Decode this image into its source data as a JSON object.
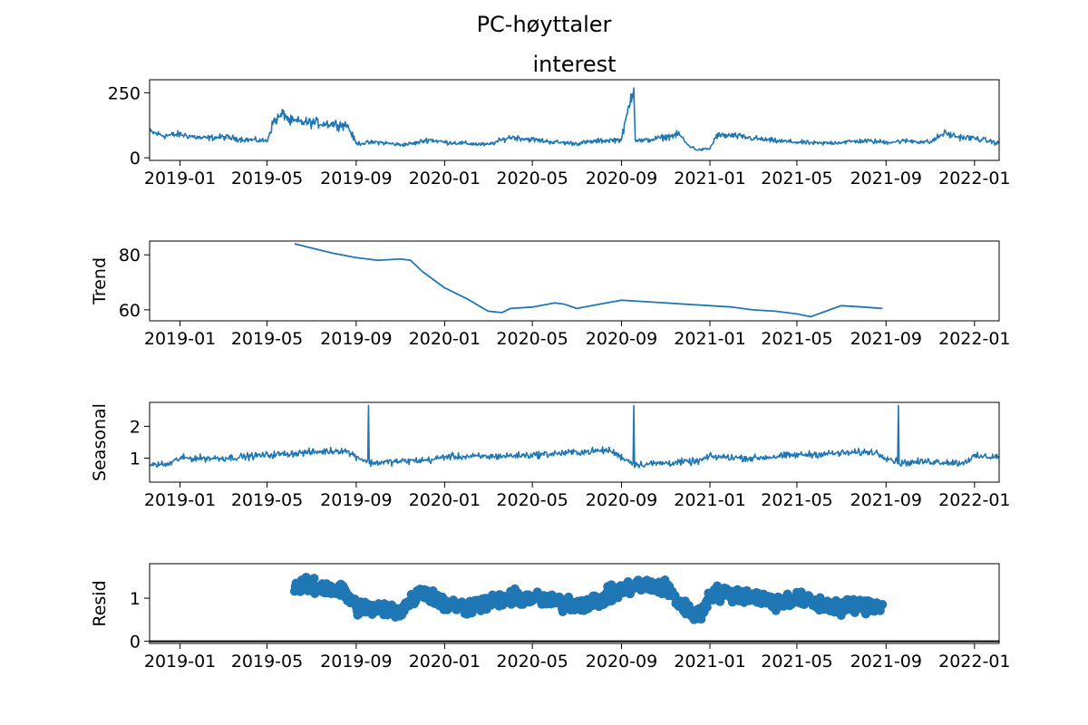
{
  "figure": {
    "suptitle": "PC-høyttaler"
  },
  "colors": {
    "series": "#1f77b4",
    "axis": "#000000",
    "baseline": "#000000"
  },
  "x_axis": {
    "type": "date",
    "range": [
      "2018-11-20",
      "2022-02-04"
    ],
    "ticks": [
      "2019-01-01",
      "2019-05-01",
      "2019-09-01",
      "2020-01-01",
      "2020-05-01",
      "2020-09-01",
      "2021-01-01",
      "2021-05-01",
      "2021-09-01",
      "2022-01-01"
    ],
    "tick_labels": [
      "2019-01",
      "2019-05",
      "2019-09",
      "2020-01",
      "2020-05",
      "2020-09",
      "2021-01",
      "2021-05",
      "2021-09",
      "2022-01"
    ]
  },
  "chart_data": [
    {
      "type": "line",
      "title": "interest",
      "ylabel": "",
      "ylim": [
        -10,
        300
      ],
      "yticks": [
        0,
        250
      ],
      "grid": false,
      "series": [
        {
          "points": [
            [
              "2018-11-20",
              100
            ],
            [
              "2018-12-10",
              85
            ],
            [
              "2019-01-01",
              90
            ],
            [
              "2019-02-01",
              75
            ],
            [
              "2019-03-01",
              80
            ],
            [
              "2019-04-01",
              70
            ],
            [
              "2019-05-01",
              65
            ],
            [
              "2019-05-10",
              140
            ],
            [
              "2019-05-25",
              170
            ],
            [
              "2019-06-01",
              140
            ],
            [
              "2019-07-01",
              135
            ],
            [
              "2019-08-01",
              130
            ],
            [
              "2019-08-20",
              125
            ],
            [
              "2019-09-01",
              55
            ],
            [
              "2019-10-01",
              60
            ],
            [
              "2019-11-01",
              50
            ],
            [
              "2019-11-20",
              55
            ],
            [
              "2019-12-10",
              70
            ],
            [
              "2020-01-01",
              60
            ],
            [
              "2020-02-01",
              55
            ],
            [
              "2020-03-01",
              50
            ],
            [
              "2020-04-01",
              80
            ],
            [
              "2020-05-01",
              70
            ],
            [
              "2020-06-01",
              60
            ],
            [
              "2020-07-01",
              55
            ],
            [
              "2020-08-01",
              65
            ],
            [
              "2020-09-01",
              70
            ],
            [
              "2020-09-18",
              280
            ],
            [
              "2020-09-20",
              70
            ],
            [
              "2020-10-01",
              65
            ],
            [
              "2020-11-01",
              80
            ],
            [
              "2020-11-20",
              90
            ],
            [
              "2020-12-01",
              50
            ],
            [
              "2020-12-15",
              30
            ],
            [
              "2021-01-01",
              35
            ],
            [
              "2021-01-10",
              85
            ],
            [
              "2021-02-01",
              85
            ],
            [
              "2021-03-01",
              75
            ],
            [
              "2021-04-01",
              65
            ],
            [
              "2021-05-01",
              60
            ],
            [
              "2021-06-01",
              55
            ],
            [
              "2021-07-01",
              60
            ],
            [
              "2021-08-01",
              65
            ],
            [
              "2021-09-01",
              60
            ],
            [
              "2021-10-01",
              65
            ],
            [
              "2021-11-01",
              60
            ],
            [
              "2021-11-20",
              95
            ],
            [
              "2021-12-10",
              80
            ],
            [
              "2022-01-01",
              75
            ],
            [
              "2022-01-20",
              65
            ],
            [
              "2022-02-04",
              55
            ]
          ]
        }
      ]
    },
    {
      "type": "line",
      "title": "",
      "ylabel": "Trend",
      "ylim": [
        56,
        85
      ],
      "yticks": [
        60,
        80
      ],
      "grid": false,
      "series": [
        {
          "points": [
            [
              "2019-06-08",
              84
            ],
            [
              "2019-07-01",
              82.5
            ],
            [
              "2019-08-01",
              80.5
            ],
            [
              "2019-09-01",
              79
            ],
            [
              "2019-10-01",
              78
            ],
            [
              "2019-11-01",
              78.5
            ],
            [
              "2019-11-15",
              78
            ],
            [
              "2019-12-01",
              74
            ],
            [
              "2020-01-01",
              68
            ],
            [
              "2020-02-01",
              64
            ],
            [
              "2020-03-01",
              59.5
            ],
            [
              "2020-03-20",
              59
            ],
            [
              "2020-04-01",
              60.5
            ],
            [
              "2020-05-01",
              61
            ],
            [
              "2020-06-01",
              62.5
            ],
            [
              "2020-06-15",
              62
            ],
            [
              "2020-07-01",
              60.5
            ],
            [
              "2020-08-01",
              62
            ],
            [
              "2020-09-01",
              63.5
            ],
            [
              "2020-10-01",
              63
            ],
            [
              "2020-11-01",
              62.5
            ],
            [
              "2020-12-01",
              62
            ],
            [
              "2021-01-01",
              61.5
            ],
            [
              "2021-02-01",
              61
            ],
            [
              "2021-03-01",
              60
            ],
            [
              "2021-04-01",
              59.5
            ],
            [
              "2021-05-01",
              58.5
            ],
            [
              "2021-05-20",
              57.5
            ],
            [
              "2021-06-10",
              59.5
            ],
            [
              "2021-07-01",
              61.5
            ],
            [
              "2021-08-01",
              61
            ],
            [
              "2021-08-27",
              60.5
            ]
          ]
        }
      ]
    },
    {
      "type": "line",
      "title": "",
      "ylabel": "Seasonal",
      "ylim": [
        0.25,
        2.75
      ],
      "yticks": [
        1,
        2
      ],
      "grid": false,
      "series": [
        {
          "base_segments": [
            [
              "2018-11-20",
              0.8
            ],
            [
              "2018-12-15",
              0.8
            ],
            [
              "2019-01-01",
              1.0
            ],
            [
              "2019-03-01",
              1.0
            ],
            [
              "2019-05-01",
              1.1
            ],
            [
              "2019-08-15",
              1.25
            ],
            [
              "2019-09-20",
              0.85
            ],
            [
              "2019-11-01",
              0.9
            ],
            [
              "2019-12-15",
              0.95
            ],
            [
              "2020-01-01",
              1.05
            ],
            [
              "2020-03-01",
              1.05
            ],
            [
              "2020-05-01",
              1.1
            ],
            [
              "2020-08-15",
              1.25
            ],
            [
              "2020-09-20",
              0.8
            ],
            [
              "2020-11-01",
              0.85
            ],
            [
              "2020-12-15",
              0.9
            ],
            [
              "2021-01-01",
              1.05
            ],
            [
              "2021-03-01",
              1.0
            ],
            [
              "2021-05-01",
              1.1
            ],
            [
              "2021-08-15",
              1.2
            ],
            [
              "2021-09-20",
              0.85
            ],
            [
              "2021-11-01",
              0.9
            ],
            [
              "2021-12-15",
              0.85
            ],
            [
              "2022-01-01",
              1.05
            ],
            [
              "2022-02-04",
              1.05
            ]
          ],
          "spikes": [
            [
              "2019-09-18",
              2.65
            ],
            [
              "2020-09-18",
              2.65
            ],
            [
              "2021-09-18",
              2.65
            ]
          ]
        }
      ]
    },
    {
      "type": "scatter",
      "title": "",
      "ylabel": "Resid",
      "ylim": [
        -0.05,
        1.8
      ],
      "yticks": [
        0,
        1
      ],
      "grid": false,
      "baseline": 0,
      "series": [
        {
          "segments": [
            [
              "2019-06-08",
              1.3
            ],
            [
              "2019-07-15",
              1.25
            ],
            [
              "2019-08-15",
              1.15
            ],
            [
              "2019-09-01",
              0.8
            ],
            [
              "2019-10-01",
              0.75
            ],
            [
              "2019-11-01",
              0.7
            ],
            [
              "2019-12-01",
              1.2
            ],
            [
              "2020-01-01",
              0.85
            ],
            [
              "2020-02-01",
              0.8
            ],
            [
              "2020-03-01",
              0.9
            ],
            [
              "2020-04-01",
              1.0
            ],
            [
              "2020-05-01",
              1.0
            ],
            [
              "2020-06-01",
              0.9
            ],
            [
              "2020-07-01",
              0.85
            ],
            [
              "2020-08-01",
              0.95
            ],
            [
              "2020-09-01",
              1.2
            ],
            [
              "2020-10-01",
              1.3
            ],
            [
              "2020-11-01",
              1.25
            ],
            [
              "2020-12-01",
              0.7
            ],
            [
              "2020-12-20",
              0.6
            ],
            [
              "2021-01-01",
              1.1
            ],
            [
              "2021-02-01",
              1.1
            ],
            [
              "2021-03-01",
              1.05
            ],
            [
              "2021-04-01",
              0.9
            ],
            [
              "2021-05-01",
              1.0
            ],
            [
              "2021-06-01",
              0.85
            ],
            [
              "2021-07-01",
              0.8
            ],
            [
              "2021-08-27",
              0.85
            ]
          ],
          "count": 445
        }
      ]
    }
  ]
}
